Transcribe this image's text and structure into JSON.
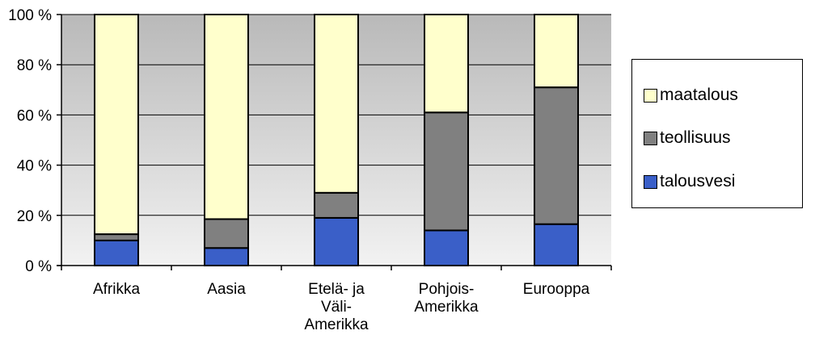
{
  "chart_data": {
    "type": "bar",
    "stacked": true,
    "categories": [
      [
        "Afrikka"
      ],
      [
        "Aasia"
      ],
      [
        "Etelä- ja",
        "Väli-",
        "Amerikka"
      ],
      [
        "Pohjois-",
        "Amerikka"
      ],
      [
        "Eurooppa"
      ]
    ],
    "series": [
      {
        "name": "talousvesi",
        "color": "#3a5fc8",
        "values": [
          10,
          7,
          19,
          14,
          16.5
        ]
      },
      {
        "name": "teollisuus",
        "color": "#808080",
        "values": [
          2.5,
          11.5,
          10,
          47,
          54.5
        ]
      },
      {
        "name": "maatalous",
        "color": "#ffffcc",
        "values": [
          87.5,
          81.5,
          71,
          39,
          29
        ]
      }
    ],
    "yticks": [
      "0 %",
      "20 %",
      "40 %",
      "60 %",
      "80 %",
      "100 %"
    ],
    "ylim": [
      0,
      100
    ],
    "grid": true,
    "plot_background": "gradient gray",
    "legend_position": "right"
  },
  "legend": {
    "items": [
      {
        "label": "maatalous",
        "color": "#ffffcc"
      },
      {
        "label": "teollisuus",
        "color": "#808080"
      },
      {
        "label": "talousvesi",
        "color": "#3a5fc8"
      }
    ]
  }
}
